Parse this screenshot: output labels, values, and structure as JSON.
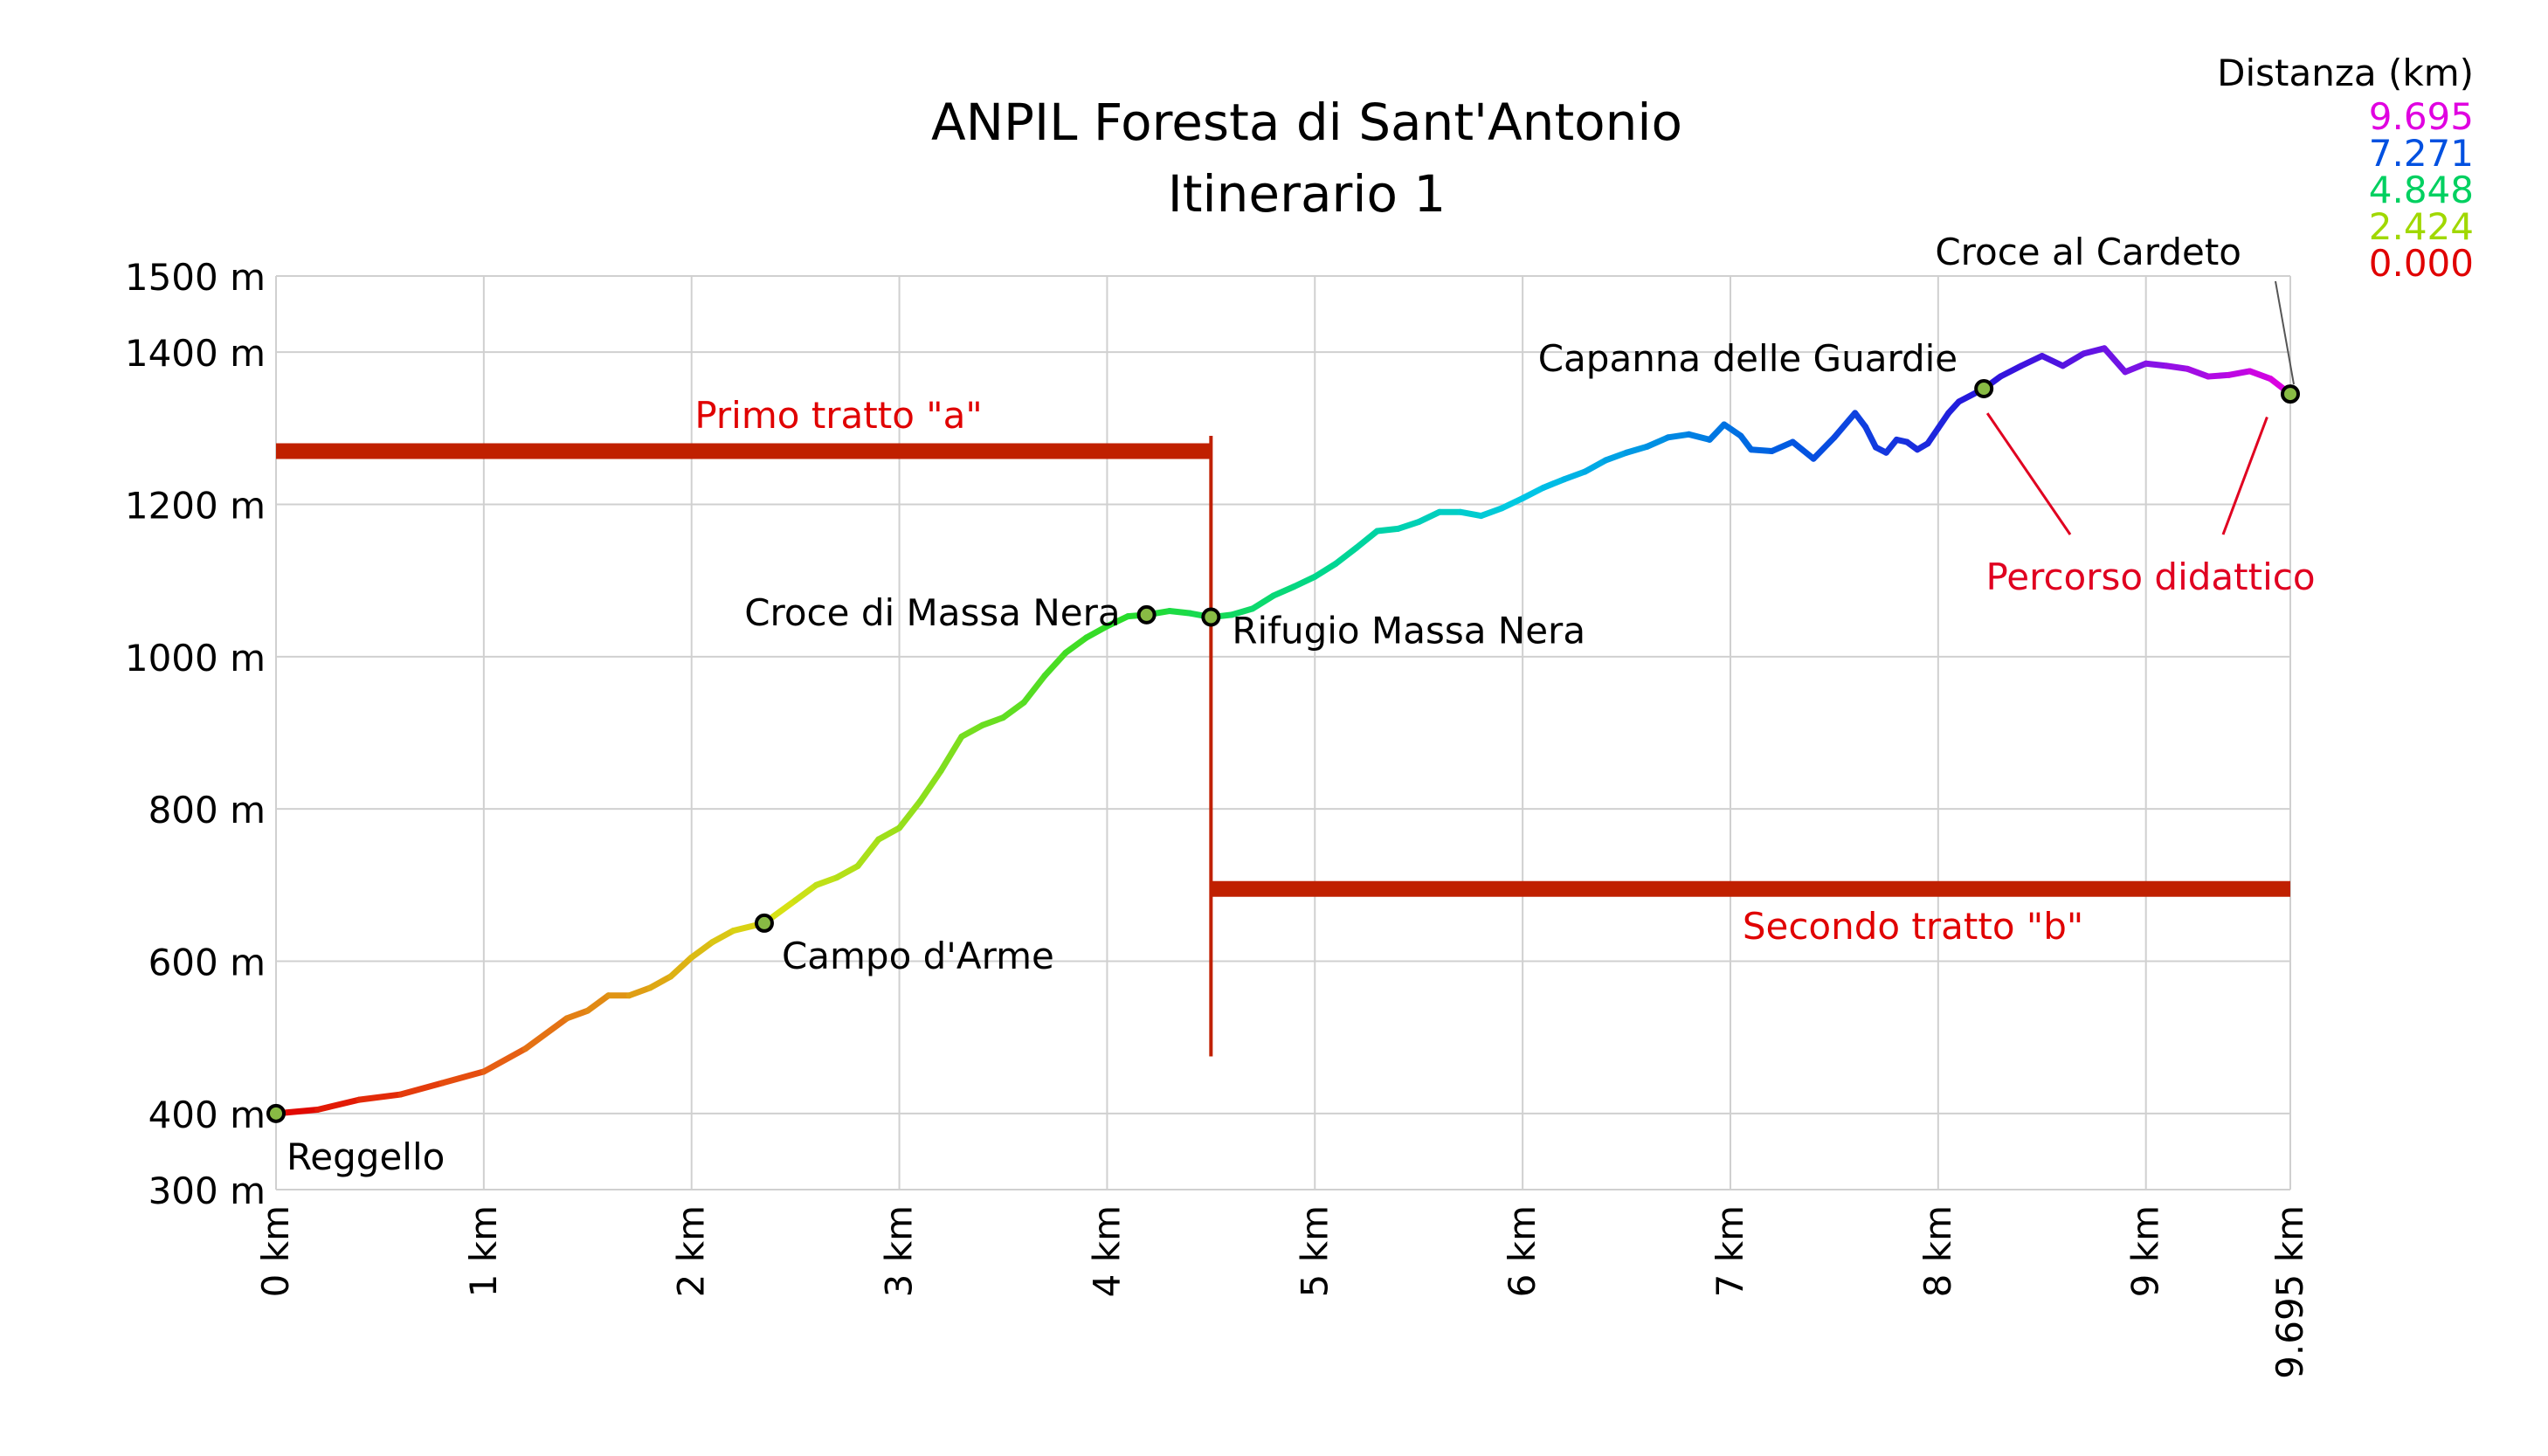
{
  "chart_data": {
    "type": "line",
    "title": "ANPIL Foresta di Sant'Antonio",
    "subtitle": "Itinerario 1",
    "xlabel": "",
    "ylabel": "",
    "xlim": [
      0,
      9.695
    ],
    "ylim": [
      300,
      1500
    ],
    "grid": true,
    "x_ticks": [
      {
        "value": 0,
        "label": "0 km"
      },
      {
        "value": 1,
        "label": "1 km"
      },
      {
        "value": 2,
        "label": "2 km"
      },
      {
        "value": 3,
        "label": "3 km"
      },
      {
        "value": 4,
        "label": "4 km"
      },
      {
        "value": 5,
        "label": "5 km"
      },
      {
        "value": 6,
        "label": "6 km"
      },
      {
        "value": 7,
        "label": "7 km"
      },
      {
        "value": 8,
        "label": "8 km"
      },
      {
        "value": 9,
        "label": "9 km"
      },
      {
        "value": 9.695,
        "label": "9.695 km"
      }
    ],
    "y_ticks": [
      {
        "value": 300,
        "label": "300 m"
      },
      {
        "value": 400,
        "label": "400 m"
      },
      {
        "value": 600,
        "label": "600 m"
      },
      {
        "value": 800,
        "label": "800 m"
      },
      {
        "value": 1000,
        "label": "1000 m"
      },
      {
        "value": 1200,
        "label": "1200 m"
      },
      {
        "value": 1400,
        "label": "1400 m"
      },
      {
        "value": 1500,
        "label": "1500 m"
      }
    ],
    "color_legend": {
      "title": "Distanza (km)",
      "entries": [
        {
          "label": "9.695",
          "color": "#e000e0"
        },
        {
          "label": "7.271",
          "color": "#0050e0"
        },
        {
          "label": "4.848",
          "color": "#00d060"
        },
        {
          "label": "2.424",
          "color": "#a0d800"
        },
        {
          "label": "0.000",
          "color": "#e00000"
        }
      ]
    },
    "profile": {
      "x": [
        0,
        0.2,
        0.4,
        0.6,
        0.8,
        1.0,
        1.2,
        1.4,
        1.5,
        1.6,
        1.7,
        1.8,
        1.9,
        2.0,
        2.1,
        2.2,
        2.35,
        2.5,
        2.6,
        2.7,
        2.8,
        2.9,
        3.0,
        3.1,
        3.2,
        3.3,
        3.4,
        3.5,
        3.6,
        3.7,
        3.8,
        3.9,
        4.0,
        4.1,
        4.19,
        4.3,
        4.4,
        4.5,
        4.6,
        4.7,
        4.8,
        4.9,
        5.0,
        5.1,
        5.2,
        5.3,
        5.4,
        5.5,
        5.6,
        5.7,
        5.8,
        5.9,
        6.0,
        6.1,
        6.2,
        6.3,
        6.4,
        6.5,
        6.6,
        6.7,
        6.8,
        6.9,
        6.97,
        7.05,
        7.1,
        7.2,
        7.3,
        7.4,
        7.5,
        7.6,
        7.65,
        7.7,
        7.75,
        7.8,
        7.85,
        7.9,
        7.95,
        8.0,
        8.05,
        8.1,
        8.22,
        8.3,
        8.4,
        8.5,
        8.6,
        8.7,
        8.8,
        8.9,
        9.0,
        9.1,
        9.2,
        9.3,
        9.4,
        9.5,
        9.6,
        9.695
      ],
      "y": [
        400,
        405,
        418,
        425,
        440,
        455,
        485,
        525,
        535,
        555,
        555,
        565,
        580,
        605,
        625,
        640,
        650,
        680,
        700,
        710,
        725,
        760,
        775,
        810,
        850,
        895,
        910,
        920,
        940,
        975,
        1005,
        1025,
        1040,
        1053,
        1055,
        1060,
        1057,
        1052,
        1055,
        1063,
        1080,
        1092,
        1105,
        1122,
        1143,
        1165,
        1168,
        1177,
        1190,
        1190,
        1185,
        1195,
        1208,
        1222,
        1233,
        1243,
        1258,
        1268,
        1276,
        1288,
        1292,
        1285,
        1305,
        1290,
        1272,
        1270,
        1282,
        1260,
        1288,
        1320,
        1302,
        1275,
        1268,
        1285,
        1282,
        1272,
        1280,
        1300,
        1320,
        1335,
        1352,
        1368,
        1382,
        1395,
        1382,
        1398,
        1405,
        1374,
        1385,
        1382,
        1378,
        1368,
        1370,
        1375,
        1365,
        1345
      ]
    },
    "waypoints": [
      {
        "name": "Reggello",
        "x": 0,
        "y": 400
      },
      {
        "name": "Campo d'Arme",
        "x": 2.35,
        "y": 650
      },
      {
        "name": "Croce di Massa Nera",
        "x": 4.19,
        "y": 1055
      },
      {
        "name": "Rifugio Massa Nera",
        "x": 4.5,
        "y": 1052
      },
      {
        "name": "Capanna delle Guardie",
        "x": 8.22,
        "y": 1352
      },
      {
        "name": "Croce al Cardeto",
        "x": 9.695,
        "y": 1345
      }
    ],
    "segments": [
      {
        "name": "Primo tratto \"a\"",
        "x_start": 0,
        "x_end": 4.5,
        "y": 1270,
        "color": "#c02000"
      },
      {
        "name": "Secondo tratto \"b\"",
        "x_start": 4.5,
        "x_end": 9.695,
        "y": 695,
        "color": "#c02000"
      }
    ],
    "divider": {
      "x": 4.5,
      "y_top": 1290,
      "y_bottom": 475,
      "color": "#c02000"
    },
    "annotation": {
      "text": "Percorso didattico",
      "color": "#e00020",
      "from_x": [
        8.22,
        9.6
      ]
    }
  }
}
